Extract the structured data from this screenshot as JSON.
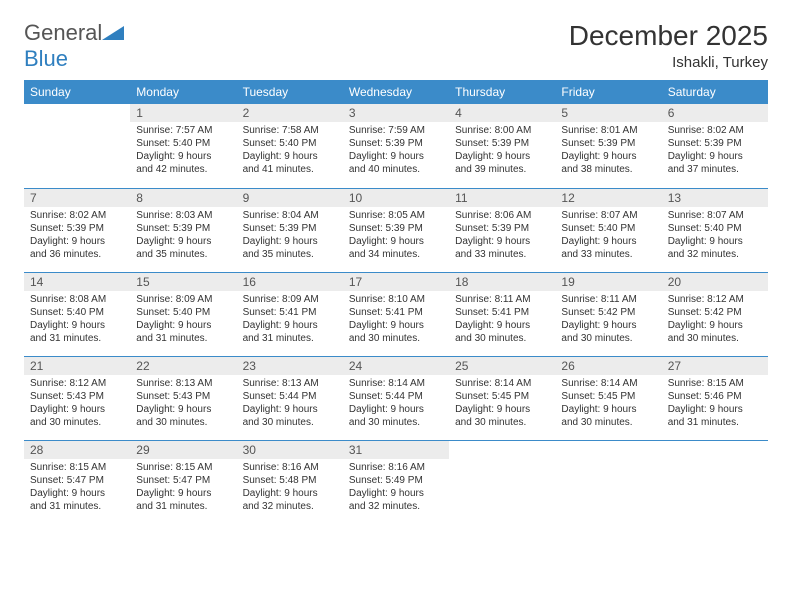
{
  "logo": {
    "text1": "General",
    "text2": "Blue"
  },
  "title": "December 2025",
  "location": "Ishakli, Turkey",
  "header_bg": "#3b8bc9",
  "daynum_bg": "#ececec",
  "weekdays": [
    "Sunday",
    "Monday",
    "Tuesday",
    "Wednesday",
    "Thursday",
    "Friday",
    "Saturday"
  ],
  "weeks": [
    [
      {
        "n": "",
        "sr": "",
        "ss": "",
        "dl1": "",
        "dl2": "",
        "empty": true
      },
      {
        "n": "1",
        "sr": "Sunrise: 7:57 AM",
        "ss": "Sunset: 5:40 PM",
        "dl1": "Daylight: 9 hours",
        "dl2": "and 42 minutes."
      },
      {
        "n": "2",
        "sr": "Sunrise: 7:58 AM",
        "ss": "Sunset: 5:40 PM",
        "dl1": "Daylight: 9 hours",
        "dl2": "and 41 minutes."
      },
      {
        "n": "3",
        "sr": "Sunrise: 7:59 AM",
        "ss": "Sunset: 5:39 PM",
        "dl1": "Daylight: 9 hours",
        "dl2": "and 40 minutes."
      },
      {
        "n": "4",
        "sr": "Sunrise: 8:00 AM",
        "ss": "Sunset: 5:39 PM",
        "dl1": "Daylight: 9 hours",
        "dl2": "and 39 minutes."
      },
      {
        "n": "5",
        "sr": "Sunrise: 8:01 AM",
        "ss": "Sunset: 5:39 PM",
        "dl1": "Daylight: 9 hours",
        "dl2": "and 38 minutes."
      },
      {
        "n": "6",
        "sr": "Sunrise: 8:02 AM",
        "ss": "Sunset: 5:39 PM",
        "dl1": "Daylight: 9 hours",
        "dl2": "and 37 minutes."
      }
    ],
    [
      {
        "n": "7",
        "sr": "Sunrise: 8:02 AM",
        "ss": "Sunset: 5:39 PM",
        "dl1": "Daylight: 9 hours",
        "dl2": "and 36 minutes."
      },
      {
        "n": "8",
        "sr": "Sunrise: 8:03 AM",
        "ss": "Sunset: 5:39 PM",
        "dl1": "Daylight: 9 hours",
        "dl2": "and 35 minutes."
      },
      {
        "n": "9",
        "sr": "Sunrise: 8:04 AM",
        "ss": "Sunset: 5:39 PM",
        "dl1": "Daylight: 9 hours",
        "dl2": "and 35 minutes."
      },
      {
        "n": "10",
        "sr": "Sunrise: 8:05 AM",
        "ss": "Sunset: 5:39 PM",
        "dl1": "Daylight: 9 hours",
        "dl2": "and 34 minutes."
      },
      {
        "n": "11",
        "sr": "Sunrise: 8:06 AM",
        "ss": "Sunset: 5:39 PM",
        "dl1": "Daylight: 9 hours",
        "dl2": "and 33 minutes."
      },
      {
        "n": "12",
        "sr": "Sunrise: 8:07 AM",
        "ss": "Sunset: 5:40 PM",
        "dl1": "Daylight: 9 hours",
        "dl2": "and 33 minutes."
      },
      {
        "n": "13",
        "sr": "Sunrise: 8:07 AM",
        "ss": "Sunset: 5:40 PM",
        "dl1": "Daylight: 9 hours",
        "dl2": "and 32 minutes."
      }
    ],
    [
      {
        "n": "14",
        "sr": "Sunrise: 8:08 AM",
        "ss": "Sunset: 5:40 PM",
        "dl1": "Daylight: 9 hours",
        "dl2": "and 31 minutes."
      },
      {
        "n": "15",
        "sr": "Sunrise: 8:09 AM",
        "ss": "Sunset: 5:40 PM",
        "dl1": "Daylight: 9 hours",
        "dl2": "and 31 minutes."
      },
      {
        "n": "16",
        "sr": "Sunrise: 8:09 AM",
        "ss": "Sunset: 5:41 PM",
        "dl1": "Daylight: 9 hours",
        "dl2": "and 31 minutes."
      },
      {
        "n": "17",
        "sr": "Sunrise: 8:10 AM",
        "ss": "Sunset: 5:41 PM",
        "dl1": "Daylight: 9 hours",
        "dl2": "and 30 minutes."
      },
      {
        "n": "18",
        "sr": "Sunrise: 8:11 AM",
        "ss": "Sunset: 5:41 PM",
        "dl1": "Daylight: 9 hours",
        "dl2": "and 30 minutes."
      },
      {
        "n": "19",
        "sr": "Sunrise: 8:11 AM",
        "ss": "Sunset: 5:42 PM",
        "dl1": "Daylight: 9 hours",
        "dl2": "and 30 minutes."
      },
      {
        "n": "20",
        "sr": "Sunrise: 8:12 AM",
        "ss": "Sunset: 5:42 PM",
        "dl1": "Daylight: 9 hours",
        "dl2": "and 30 minutes."
      }
    ],
    [
      {
        "n": "21",
        "sr": "Sunrise: 8:12 AM",
        "ss": "Sunset: 5:43 PM",
        "dl1": "Daylight: 9 hours",
        "dl2": "and 30 minutes."
      },
      {
        "n": "22",
        "sr": "Sunrise: 8:13 AM",
        "ss": "Sunset: 5:43 PM",
        "dl1": "Daylight: 9 hours",
        "dl2": "and 30 minutes."
      },
      {
        "n": "23",
        "sr": "Sunrise: 8:13 AM",
        "ss": "Sunset: 5:44 PM",
        "dl1": "Daylight: 9 hours",
        "dl2": "and 30 minutes."
      },
      {
        "n": "24",
        "sr": "Sunrise: 8:14 AM",
        "ss": "Sunset: 5:44 PM",
        "dl1": "Daylight: 9 hours",
        "dl2": "and 30 minutes."
      },
      {
        "n": "25",
        "sr": "Sunrise: 8:14 AM",
        "ss": "Sunset: 5:45 PM",
        "dl1": "Daylight: 9 hours",
        "dl2": "and 30 minutes."
      },
      {
        "n": "26",
        "sr": "Sunrise: 8:14 AM",
        "ss": "Sunset: 5:45 PM",
        "dl1": "Daylight: 9 hours",
        "dl2": "and 30 minutes."
      },
      {
        "n": "27",
        "sr": "Sunrise: 8:15 AM",
        "ss": "Sunset: 5:46 PM",
        "dl1": "Daylight: 9 hours",
        "dl2": "and 31 minutes."
      }
    ],
    [
      {
        "n": "28",
        "sr": "Sunrise: 8:15 AM",
        "ss": "Sunset: 5:47 PM",
        "dl1": "Daylight: 9 hours",
        "dl2": "and 31 minutes."
      },
      {
        "n": "29",
        "sr": "Sunrise: 8:15 AM",
        "ss": "Sunset: 5:47 PM",
        "dl1": "Daylight: 9 hours",
        "dl2": "and 31 minutes."
      },
      {
        "n": "30",
        "sr": "Sunrise: 8:16 AM",
        "ss": "Sunset: 5:48 PM",
        "dl1": "Daylight: 9 hours",
        "dl2": "and 32 minutes."
      },
      {
        "n": "31",
        "sr": "Sunrise: 8:16 AM",
        "ss": "Sunset: 5:49 PM",
        "dl1": "Daylight: 9 hours",
        "dl2": "and 32 minutes."
      },
      {
        "n": "",
        "sr": "",
        "ss": "",
        "dl1": "",
        "dl2": "",
        "empty": true
      },
      {
        "n": "",
        "sr": "",
        "ss": "",
        "dl1": "",
        "dl2": "",
        "empty": true
      },
      {
        "n": "",
        "sr": "",
        "ss": "",
        "dl1": "",
        "dl2": "",
        "empty": true
      }
    ]
  ]
}
